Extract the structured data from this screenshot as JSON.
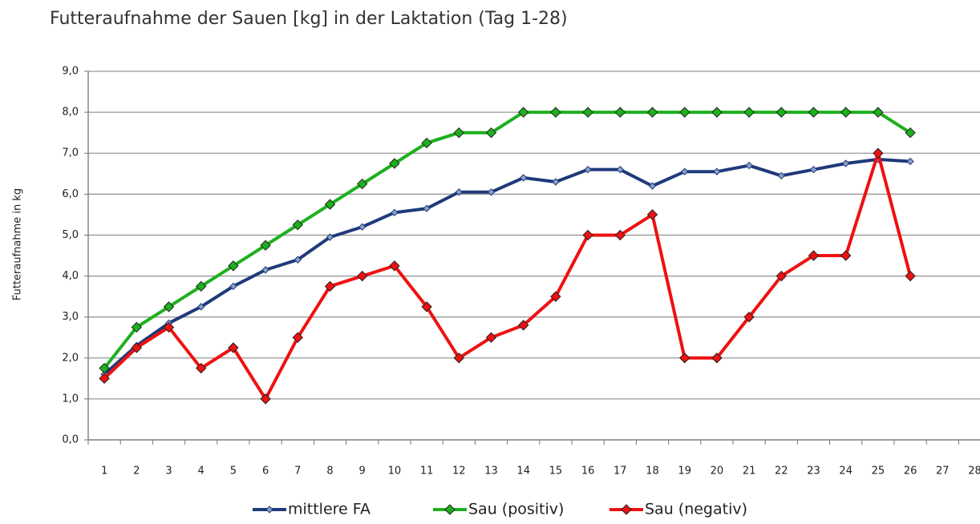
{
  "chart_data": {
    "type": "line",
    "title": "Futteraufnahme der Sauen [kg] in der Laktation (Tag 1-28)",
    "y_label": "Futteraufnahme in kg",
    "categories": [
      "1",
      "2",
      "3",
      "4",
      "5",
      "6",
      "7",
      "8",
      "9",
      "10",
      "11",
      "12",
      "13",
      "14",
      "15",
      "16",
      "17",
      "18",
      "19",
      "20",
      "21",
      "22",
      "23",
      "24",
      "25",
      "26",
      "27",
      "28"
    ],
    "series": [
      {
        "name": "mittlere FA",
        "color": "#1f3a7a",
        "marker": "small",
        "values": [
          1.6,
          2.3,
          2.85,
          3.25,
          3.75,
          4.15,
          4.4,
          4.95,
          5.2,
          5.55,
          5.65,
          6.05,
          6.05,
          6.4,
          6.3,
          6.6,
          6.6,
          6.2,
          6.55,
          6.55,
          6.7,
          6.45,
          6.6,
          6.75,
          6.85,
          6.8,
          null,
          null
        ]
      },
      {
        "name": "Sau (positiv)",
        "color": "#1db01d",
        "marker": "large",
        "values": [
          1.75,
          2.75,
          3.25,
          3.75,
          4.25,
          4.75,
          5.25,
          5.75,
          6.25,
          6.75,
          7.25,
          7.5,
          7.5,
          8,
          8,
          8,
          8,
          8,
          8,
          8,
          8,
          8,
          8,
          8,
          8,
          7.5,
          null,
          null
        ]
      },
      {
        "name": "Sau (negativ)",
        "color": "#ee1111",
        "marker": "large",
        "values": [
          1.5,
          2.25,
          2.75,
          1.75,
          2.25,
          1.0,
          2.5,
          3.75,
          4.0,
          4.25,
          3.25,
          2.0,
          2.5,
          2.8,
          3.5,
          5.0,
          5.0,
          5.5,
          2.0,
          2.0,
          3.0,
          4.0,
          4.5,
          4.5,
          7.0,
          4.0,
          null,
          null
        ]
      }
    ],
    "ylim": [
      0,
      9
    ],
    "yticks": [
      {
        "value": 0,
        "label": "0,0"
      },
      {
        "value": 1,
        "label": "1,0"
      },
      {
        "value": 2,
        "label": "2,0"
      },
      {
        "value": 3,
        "label": "3,0"
      },
      {
        "value": 4,
        "label": "4,0"
      },
      {
        "value": 5,
        "label": "5,0"
      },
      {
        "value": 6,
        "label": "6,0"
      },
      {
        "value": 7,
        "label": "7,0"
      },
      {
        "value": 8,
        "label": "8,0"
      },
      {
        "value": 9,
        "label": "9,0"
      }
    ],
    "grid": true,
    "legend": "bottom"
  }
}
